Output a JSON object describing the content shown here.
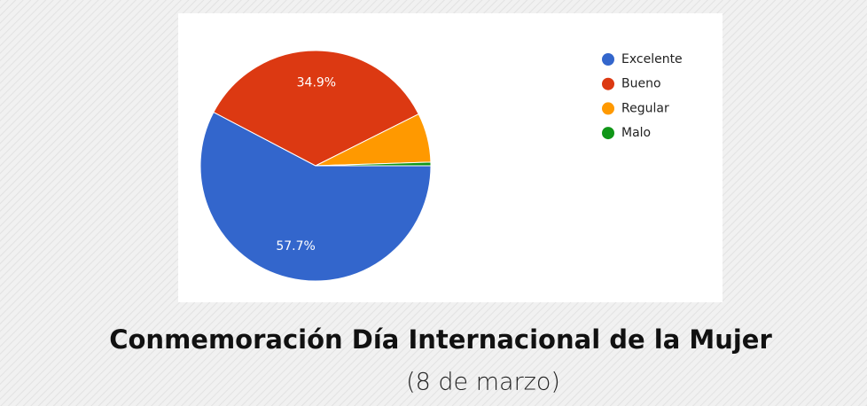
{
  "chart_data": {
    "type": "pie",
    "title": "Conmemoración Día Internacional de la Mujer",
    "subtitle": "(8 de marzo)",
    "categories": [
      "Excelente",
      "Bueno",
      "Regular",
      "Malo"
    ],
    "values": [
      57.7,
      34.9,
      6.9,
      0.5
    ],
    "value_labels": [
      "57.7%",
      "34.9%",
      null,
      null
    ],
    "colors": [
      "#3366cc",
      "#dc3912",
      "#ff9900",
      "#109618"
    ],
    "legend": "right"
  }
}
